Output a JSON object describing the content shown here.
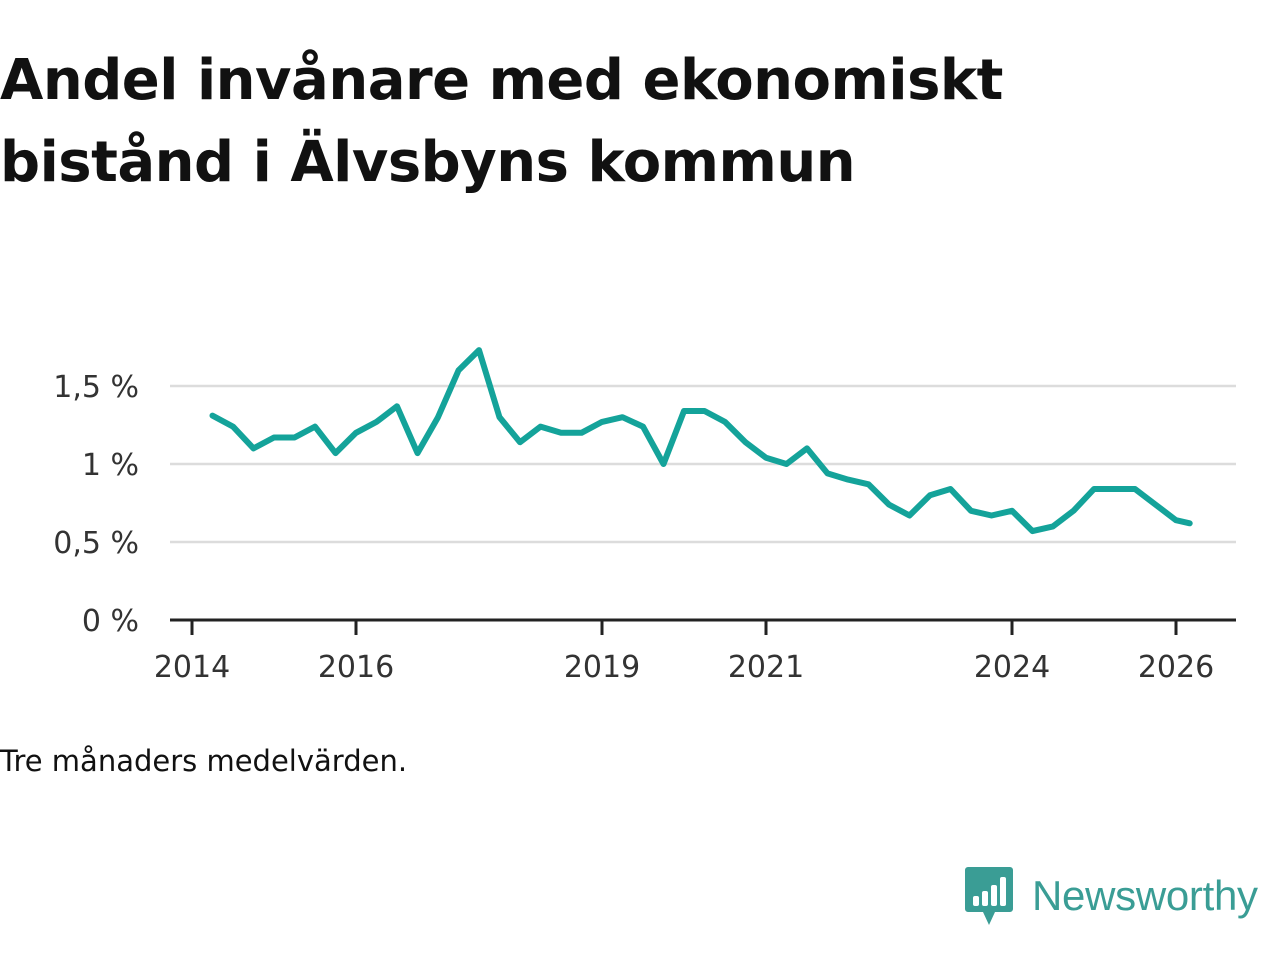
{
  "chart_data": {
    "type": "line",
    "title": "Andel invånare med ekonomiskt bistånd i Älvsbyns kommun",
    "note": "Tre månaders medelvärden.",
    "y_unit": "%",
    "ylim": [
      0,
      1.75
    ],
    "y_ticks": [
      {
        "value": 0,
        "label": "0 %"
      },
      {
        "value": 0.5,
        "label": "0,5 %"
      },
      {
        "value": 1,
        "label": "1 %"
      },
      {
        "value": 1.5,
        "label": "1,5 %"
      }
    ],
    "xlim": [
      "2014-01",
      "2026-08"
    ],
    "x_ticks": [
      {
        "value": "2014-01",
        "label": "2014"
      },
      {
        "value": "2016-01",
        "label": "2016"
      },
      {
        "value": "2019-01",
        "label": "2019"
      },
      {
        "value": "2021-01",
        "label": "2021"
      },
      {
        "value": "2024-01",
        "label": "2024"
      },
      {
        "value": "2026-01",
        "label": "2026"
      }
    ],
    "grid": true,
    "line_color": "#14a39a",
    "series": [
      {
        "x": [
          "2014-04",
          "2014-07",
          "2014-10",
          "2015-01",
          "2015-04",
          "2015-07",
          "2015-10",
          "2016-01",
          "2016-04",
          "2016-07",
          "2016-10",
          "2017-01",
          "2017-04",
          "2017-07",
          "2017-10",
          "2018-01",
          "2018-04",
          "2018-07",
          "2018-10",
          "2019-01",
          "2019-04",
          "2019-07",
          "2019-10",
          "2020-01",
          "2020-04",
          "2020-07",
          "2020-10",
          "2021-01",
          "2021-04",
          "2021-07",
          "2021-10",
          "2022-01",
          "2022-04",
          "2022-07",
          "2022-10",
          "2023-01",
          "2023-04",
          "2023-07",
          "2023-10",
          "2024-01",
          "2024-04",
          "2024-07",
          "2024-10",
          "2025-01",
          "2025-04",
          "2025-07",
          "2025-10",
          "2026-01",
          "2026-03"
        ],
        "values": [
          1.31,
          1.24,
          1.1,
          1.17,
          1.17,
          1.24,
          1.07,
          1.2,
          1.27,
          1.37,
          1.07,
          1.3,
          1.6,
          1.73,
          1.3,
          1.14,
          1.24,
          1.2,
          1.2,
          1.27,
          1.3,
          1.24,
          1.0,
          1.34,
          1.34,
          1.27,
          1.14,
          1.04,
          1.0,
          1.1,
          0.94,
          0.9,
          0.87,
          0.74,
          0.67,
          0.8,
          0.84,
          0.7,
          0.67,
          0.7,
          0.57,
          0.6,
          0.7,
          0.84,
          0.84,
          0.84,
          0.74,
          0.64,
          0.62
        ]
      }
    ]
  },
  "brand": {
    "name": "Newsworthy",
    "logo_color": "#3a9d95",
    "logo_icon": "bar-chart-speech-bubble-icon"
  }
}
